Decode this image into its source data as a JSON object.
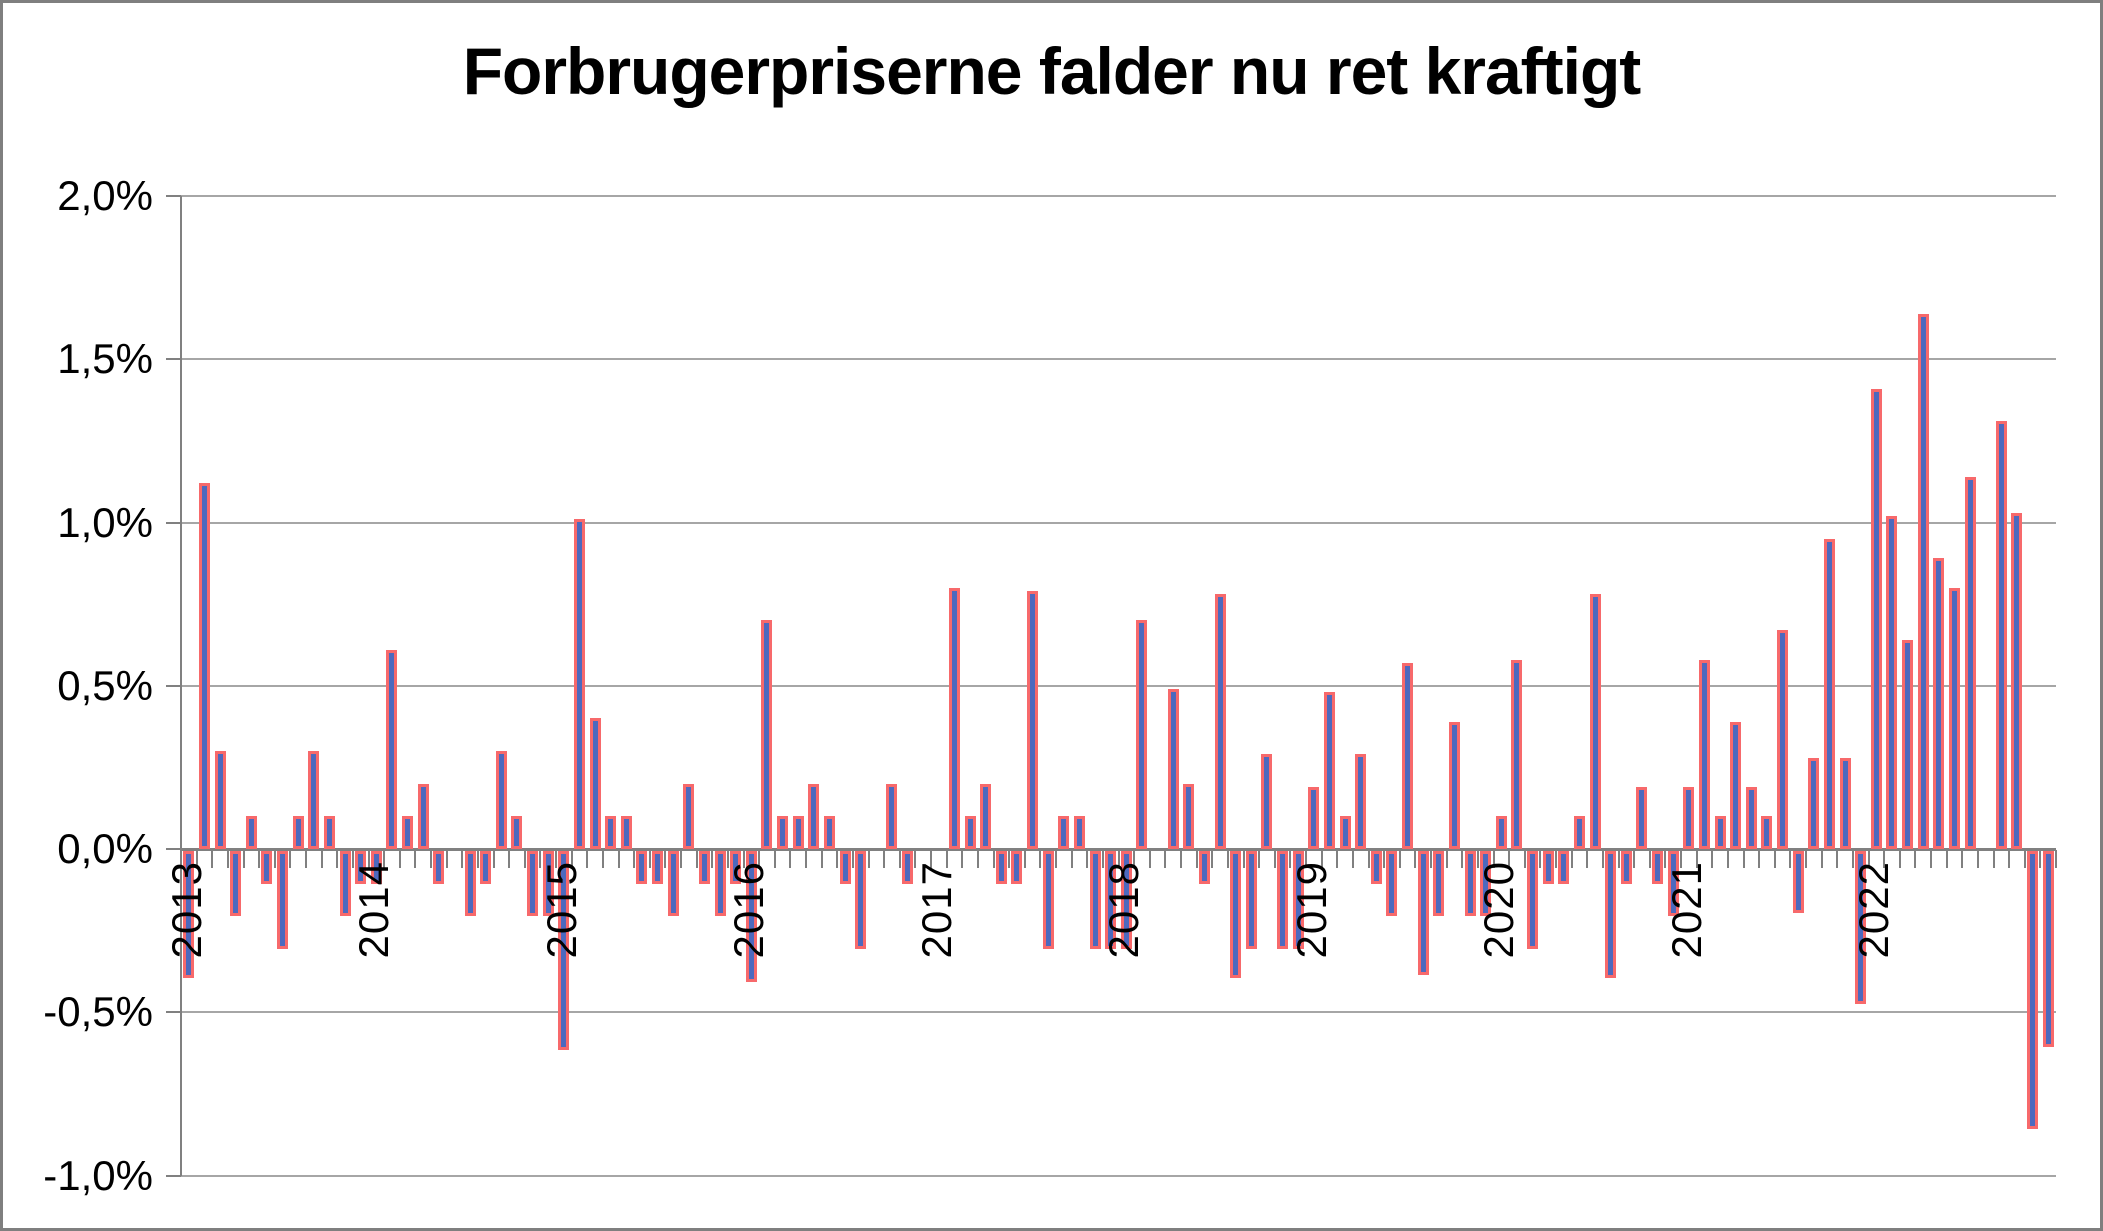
{
  "chart": {
    "title": "Forbrugerpriserne falder nu ret kraftigt"
  },
  "chart_data": {
    "type": "bar",
    "title": "Forbrugerpriserne falder nu ret kraftigt",
    "xlabel": "",
    "ylabel": "",
    "ylim": [
      -1.0,
      2.0
    ],
    "grid": true,
    "legend": "none",
    "y_axis_ticks": [
      {
        "value": 2.0,
        "label": "2,0%"
      },
      {
        "value": 1.5,
        "label": "1,5%"
      },
      {
        "value": 1.0,
        "label": "1,0%"
      },
      {
        "value": 0.5,
        "label": "0,5%"
      },
      {
        "value": 0.0,
        "label": "0,0%"
      },
      {
        "value": -0.5,
        "label": "-0,5%"
      },
      {
        "value": -1.0,
        "label": "-1,0%"
      }
    ],
    "x_axis_year_labels": [
      "2013",
      "2014",
      "2015",
      "2016",
      "2017",
      "2018",
      "2019",
      "2020",
      "2021",
      "2022"
    ],
    "unit": "percent month-over-month",
    "series": [
      {
        "year": "2013",
        "values": [
          -0.39,
          1.12,
          0.3,
          -0.2,
          0.1,
          -0.1,
          -0.3,
          0.1,
          0.3,
          0.1,
          -0.2,
          -0.1
        ]
      },
      {
        "year": "2014",
        "values": [
          -0.1,
          0.61,
          0.1,
          0.2,
          -0.1,
          0.0,
          -0.2,
          -0.1,
          0.3,
          0.1,
          -0.2,
          -0.2
        ]
      },
      {
        "year": "2015",
        "values": [
          -0.61,
          1.01,
          0.4,
          0.1,
          0.1,
          -0.1,
          -0.1,
          -0.2,
          0.2,
          -0.1,
          -0.2,
          -0.1
        ]
      },
      {
        "year": "2016",
        "values": [
          -0.4,
          0.7,
          0.1,
          0.1,
          0.2,
          0.1,
          -0.1,
          -0.3,
          0.0,
          0.2,
          -0.1,
          0.0
        ]
      },
      {
        "year": "2017",
        "values": [
          0.0,
          0.8,
          0.1,
          0.2,
          -0.1,
          -0.1,
          0.79,
          -0.3,
          0.1,
          0.1,
          -0.3,
          -0.3
        ]
      },
      {
        "year": "2018",
        "values": [
          -0.3,
          0.7,
          0.0,
          0.49,
          0.2,
          -0.1,
          0.78,
          -0.39,
          -0.3,
          0.29,
          -0.3,
          -0.3
        ]
      },
      {
        "year": "2019",
        "values": [
          0.19,
          0.48,
          0.1,
          0.29,
          -0.1,
          -0.2,
          0.57,
          -0.38,
          -0.2,
          0.39,
          -0.2,
          -0.2
        ]
      },
      {
        "year": "2020",
        "values": [
          0.1,
          0.58,
          -0.3,
          -0.1,
          -0.1,
          0.1,
          0.78,
          -0.39,
          -0.1,
          0.19,
          -0.1,
          -0.2
        ]
      },
      {
        "year": "2021",
        "values": [
          0.19,
          0.58,
          0.1,
          0.39,
          0.19,
          0.1,
          0.67,
          -0.19,
          0.28,
          0.95,
          0.28,
          -0.47
        ]
      },
      {
        "year": "2022",
        "values": [
          1.41,
          1.02,
          0.64,
          1.64,
          0.89,
          0.8,
          1.14,
          0.0,
          1.31,
          1.03,
          -0.85,
          -0.6
        ]
      }
    ],
    "colors": {
      "bar_fill": "#4d69be",
      "bar_border": "#f7696b",
      "gridline": "#a6a6a6",
      "axis": "#808080",
      "text": "#000000",
      "background": "#ffffff"
    }
  }
}
